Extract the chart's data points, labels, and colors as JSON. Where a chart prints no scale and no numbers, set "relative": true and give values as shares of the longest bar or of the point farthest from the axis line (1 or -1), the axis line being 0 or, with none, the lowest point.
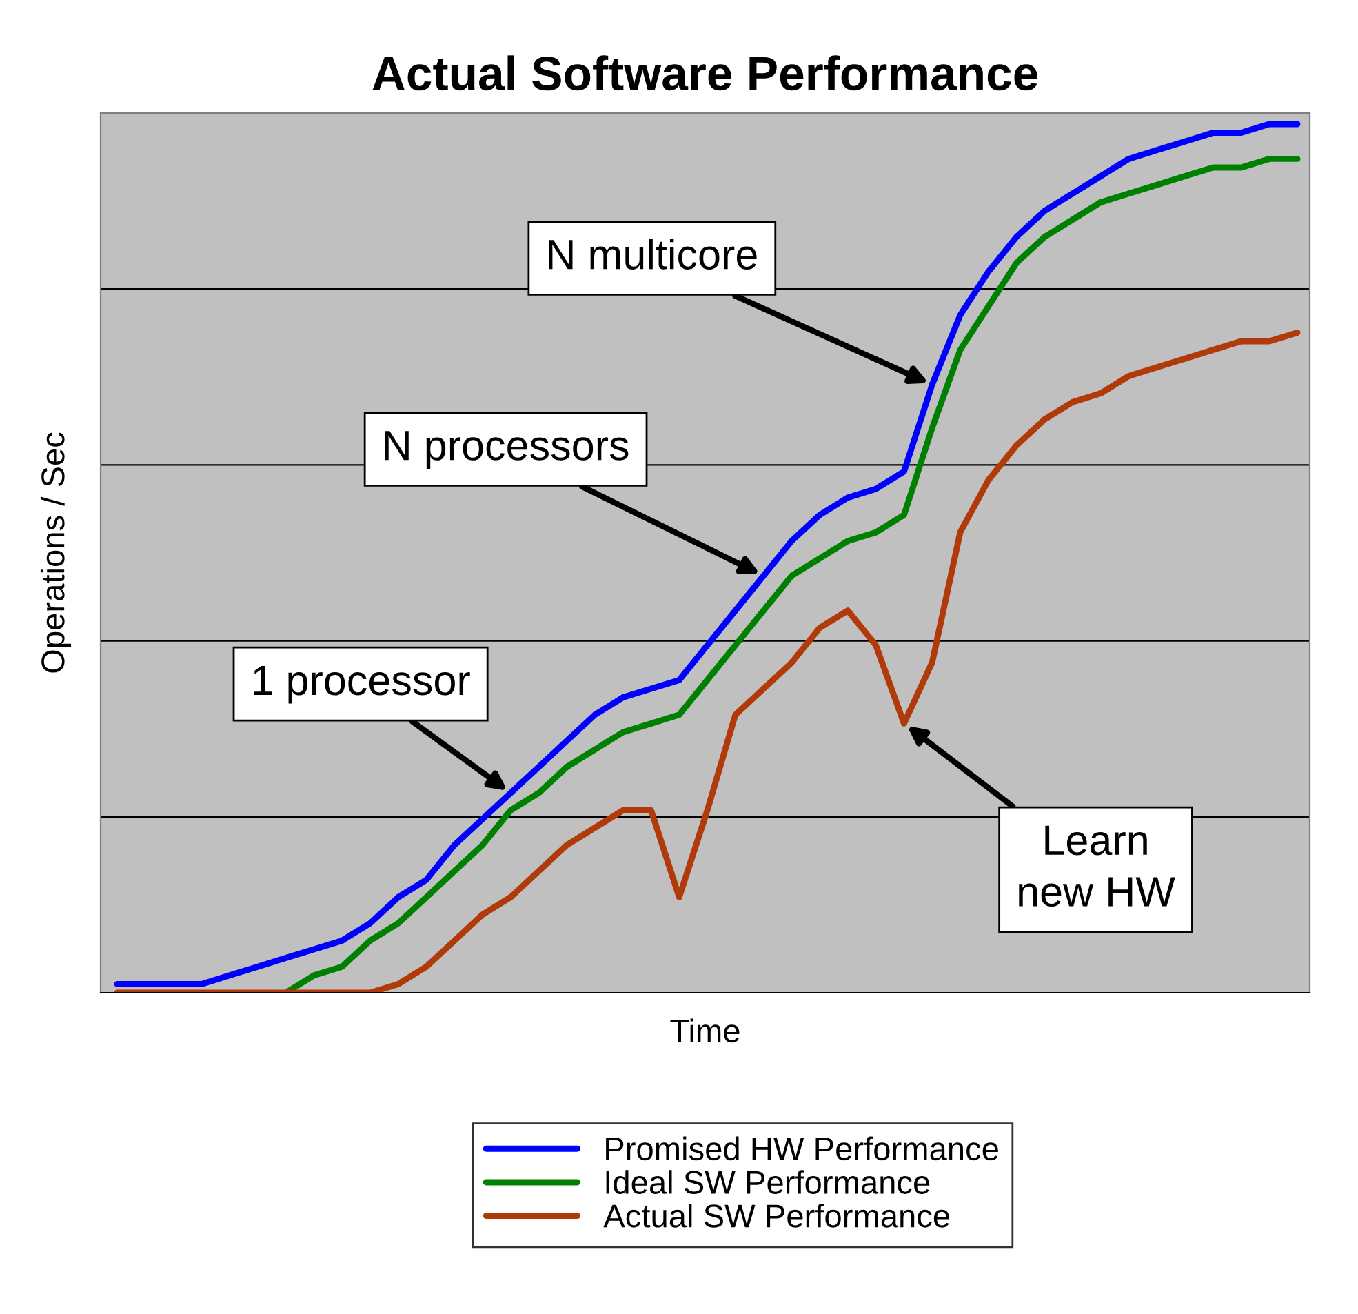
{
  "chart_data": {
    "type": "line",
    "title": "Actual Software Performance",
    "xlabel": "Time",
    "ylabel": "Operations / Sec",
    "relative": true,
    "grid": "y",
    "legend": "bottom",
    "marker": "none",
    "line_style": "solid",
    "categories": [
      null,
      null,
      null,
      null,
      null,
      null,
      null,
      null,
      null,
      null,
      null,
      null,
      null,
      null,
      null,
      null,
      null,
      null,
      null,
      null,
      null,
      null,
      null,
      null,
      null,
      null,
      null,
      null,
      null,
      null,
      null,
      null,
      null,
      null,
      null,
      null,
      null,
      null,
      null,
      null,
      null,
      null,
      null
    ],
    "series": [
      {
        "name": "Promised HW Performance",
        "color": "#0000ff",
        "values": [
          0.01,
          0.01,
          0.01,
          0.01,
          0.02,
          0.03,
          0.04,
          0.05,
          0.06,
          0.08,
          0.11,
          0.13,
          0.17,
          0.2,
          0.23,
          0.26,
          0.29,
          0.32,
          0.34,
          0.35,
          0.36,
          0.4,
          0.44,
          0.48,
          0.52,
          0.55,
          0.57,
          0.58,
          0.6,
          0.7,
          0.78,
          0.83,
          0.87,
          0.9,
          0.92,
          0.94,
          0.96,
          0.97,
          0.98,
          0.99,
          0.99,
          1.0,
          1.0
        ]
      },
      {
        "name": "Ideal SW Performance",
        "color": "#008000",
        "values": [
          null,
          null,
          null,
          null,
          null,
          null,
          0.0,
          0.02,
          0.03,
          0.06,
          0.08,
          0.11,
          0.14,
          0.17,
          0.21,
          0.23,
          0.26,
          0.28,
          0.3,
          0.31,
          0.32,
          0.36,
          0.4,
          0.44,
          0.48,
          0.5,
          0.52,
          0.53,
          0.55,
          0.65,
          0.74,
          0.79,
          0.84,
          0.87,
          0.89,
          0.91,
          0.92,
          0.93,
          0.94,
          0.95,
          0.95,
          0.96,
          0.96
        ]
      },
      {
        "name": "Actual SW Performance",
        "color": "#b03a0a",
        "values": [
          0,
          0,
          0,
          0,
          0,
          0,
          0,
          0,
          0,
          0,
          0.01,
          0.03,
          0.06,
          0.09,
          0.11,
          0.14,
          0.17,
          0.19,
          0.21,
          0.21,
          0.11,
          0.21,
          0.32,
          0.35,
          0.38,
          0.42,
          0.44,
          0.4,
          0.31,
          0.38,
          0.53,
          0.59,
          0.63,
          0.66,
          0.68,
          0.69,
          0.71,
          0.72,
          0.73,
          0.74,
          0.75,
          0.75,
          0.76
        ]
      }
    ],
    "annotations": [
      "N multicore",
      "N processors",
      "1 processor",
      "Learn\nnew HW"
    ]
  }
}
